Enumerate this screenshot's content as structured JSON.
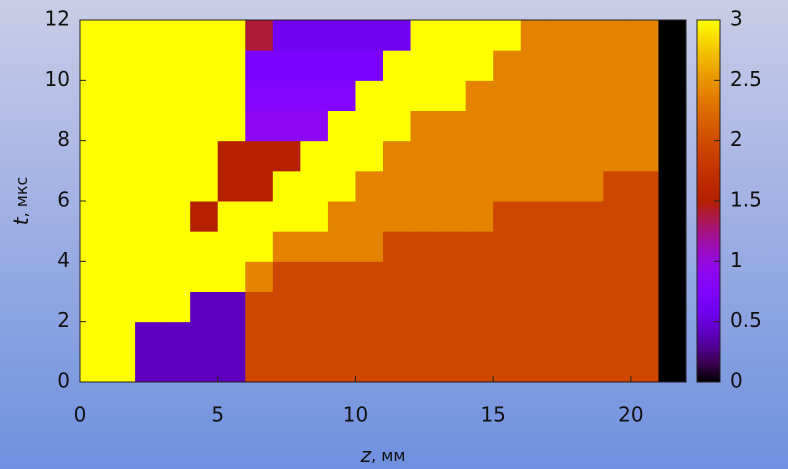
{
  "chart_data": {
    "type": "heatmap",
    "xlabel": {
      "symbol": "z",
      "unit": ", мм"
    },
    "ylabel": {
      "symbol": "t",
      "unit": ", мкс"
    },
    "xlim": [
      0,
      22
    ],
    "ylim": [
      0,
      12
    ],
    "xticks": [
      0,
      5,
      10,
      15,
      20
    ],
    "yticks": [
      0,
      2,
      4,
      6,
      8,
      10,
      12
    ],
    "x": [
      0.5,
      1.5,
      2.5,
      3.5,
      4.5,
      5.5,
      6.5,
      7.5,
      8.5,
      9.5,
      10.5,
      11.5,
      12.5,
      13.5,
      14.5,
      15.5,
      16.5,
      17.5,
      18.5,
      19.5,
      20.5,
      21.5
    ],
    "y": [
      0.5,
      1.5,
      2.5,
      3.5,
      4.5,
      5.5,
      6.5,
      7.5,
      8.5,
      9.5,
      10.5,
      11.5
    ],
    "z": [
      [
        3,
        3,
        0.4,
        0.4,
        0.4,
        0.4,
        1.95,
        1.95,
        1.95,
        1.95,
        1.95,
        1.95,
        1.95,
        1.95,
        1.95,
        1.95,
        1.95,
        1.95,
        1.95,
        1.95,
        1.95,
        0
      ],
      [
        3,
        3,
        0.4,
        0.4,
        0.4,
        0.4,
        1.95,
        1.95,
        1.95,
        1.95,
        1.95,
        1.95,
        1.95,
        1.95,
        1.95,
        1.95,
        1.95,
        1.95,
        1.95,
        1.95,
        1.95,
        0
      ],
      [
        3,
        3,
        3,
        3,
        0.4,
        0.4,
        1.95,
        1.95,
        1.95,
        1.95,
        1.95,
        1.95,
        1.95,
        1.95,
        1.95,
        1.95,
        1.95,
        1.95,
        1.95,
        1.95,
        1.95,
        0
      ],
      [
        3,
        3,
        3,
        3,
        3,
        3,
        2.4,
        1.95,
        1.95,
        1.95,
        1.95,
        1.95,
        1.95,
        1.95,
        1.95,
        1.95,
        1.95,
        1.95,
        1.95,
        1.95,
        1.95,
        0
      ],
      [
        3,
        3,
        3,
        3,
        3,
        3,
        3,
        2.4,
        2.4,
        2.4,
        2.4,
        1.95,
        1.95,
        1.95,
        1.95,
        1.95,
        1.95,
        1.95,
        1.95,
        1.95,
        1.95,
        0
      ],
      [
        3,
        3,
        3,
        3,
        1.5,
        3,
        3,
        3,
        3,
        2.4,
        2.4,
        2.4,
        2.4,
        2.4,
        2.4,
        1.95,
        1.95,
        1.95,
        1.95,
        1.95,
        1.95,
        0
      ],
      [
        3,
        3,
        3,
        3,
        3,
        1.5,
        1.5,
        3,
        3,
        3,
        2.4,
        2.4,
        2.4,
        2.4,
        2.4,
        2.4,
        2.4,
        2.4,
        2.4,
        1.95,
        1.95,
        0
      ],
      [
        3,
        3,
        3,
        3,
        3,
        1.5,
        1.5,
        1.5,
        3,
        3,
        3,
        2.4,
        2.4,
        2.4,
        2.4,
        2.4,
        2.4,
        2.4,
        2.4,
        2.4,
        2.4,
        0
      ],
      [
        3,
        3,
        3,
        3,
        3,
        3,
        0.9,
        0.9,
        0.9,
        3,
        3,
        3,
        2.4,
        2.4,
        2.4,
        2.4,
        2.4,
        2.4,
        2.4,
        2.4,
        2.4,
        0
      ],
      [
        3,
        3,
        3,
        3,
        3,
        3,
        0.8,
        0.8,
        0.8,
        0.8,
        3,
        3,
        3,
        3,
        2.4,
        2.4,
        2.4,
        2.4,
        2.4,
        2.4,
        2.4,
        0
      ],
      [
        3,
        3,
        3,
        3,
        3,
        3,
        0.7,
        0.7,
        0.7,
        0.7,
        0.7,
        3,
        3,
        3,
        3,
        2.4,
        2.4,
        2.4,
        2.4,
        2.4,
        2.4,
        0
      ],
      [
        3,
        3,
        3,
        3,
        3,
        3,
        1.4,
        0.6,
        0.6,
        0.6,
        0.6,
        0.6,
        3,
        3,
        3,
        3,
        2.4,
        2.4,
        2.4,
        2.4,
        2.4,
        0
      ]
    ],
    "zlim": [
      0,
      3
    ],
    "zticks": [
      0,
      0.5,
      1,
      1.5,
      2,
      2.5,
      3
    ]
  }
}
